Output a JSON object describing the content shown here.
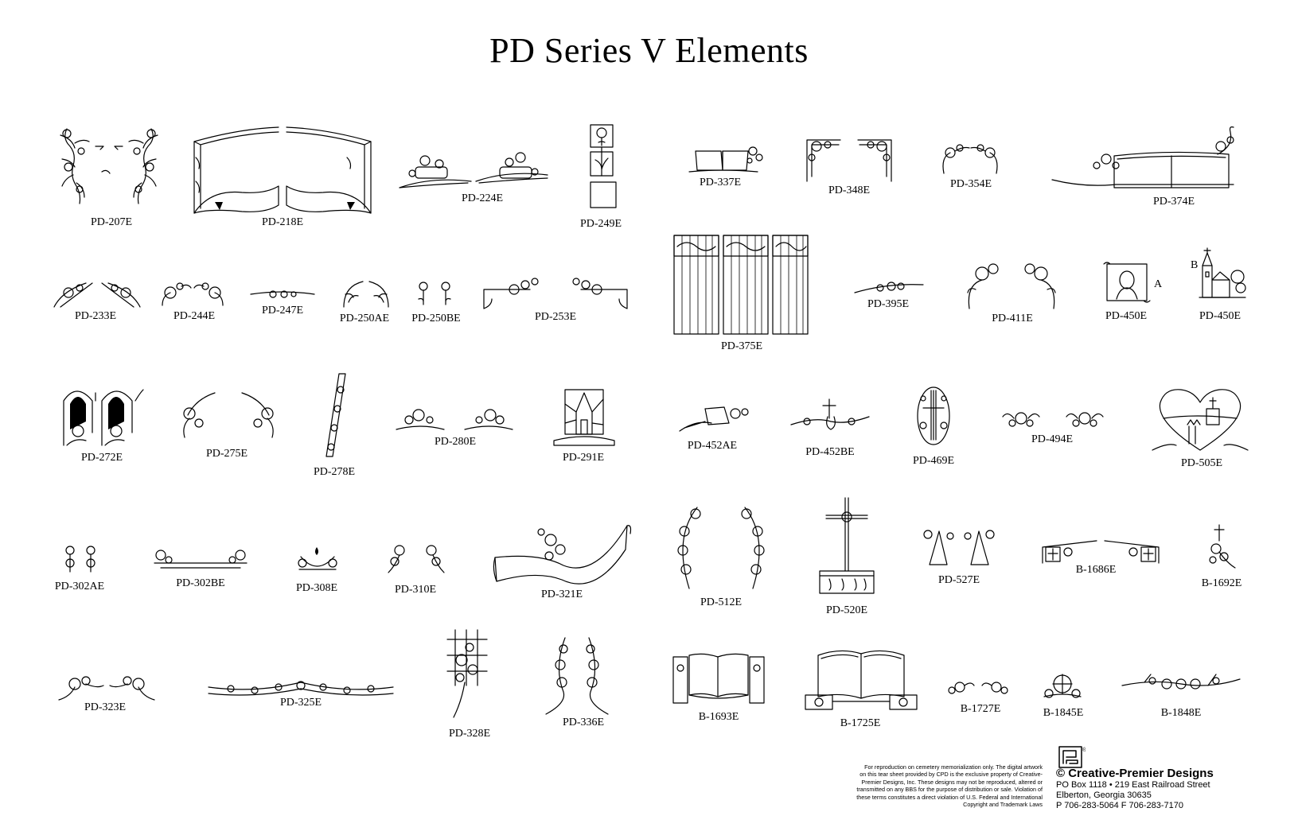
{
  "title": "PD Series V Elements",
  "elements": [
    {
      "id": "PD-207E"
    },
    {
      "id": "PD-218E"
    },
    {
      "id": "PD-224E"
    },
    {
      "id": "PD-249E"
    },
    {
      "id": "PD-337E"
    },
    {
      "id": "PD-348E"
    },
    {
      "id": "PD-354E"
    },
    {
      "id": "PD-374E"
    },
    {
      "id": "PD-233E"
    },
    {
      "id": "PD-244E"
    },
    {
      "id": "PD-247E"
    },
    {
      "id": "PD-250AE"
    },
    {
      "id": "PD-250BE"
    },
    {
      "id": "PD-253E"
    },
    {
      "id": "PD-375E"
    },
    {
      "id": "PD-395E"
    },
    {
      "id": "PD-411E"
    },
    {
      "id": "PD-450E"
    },
    {
      "id": "PD-450E"
    },
    {
      "id": "PD-272E"
    },
    {
      "id": "PD-275E"
    },
    {
      "id": "PD-278E"
    },
    {
      "id": "PD-280E"
    },
    {
      "id": "PD-291E"
    },
    {
      "id": "PD-452AE"
    },
    {
      "id": "PD-452BE"
    },
    {
      "id": "PD-469E"
    },
    {
      "id": "PD-494E"
    },
    {
      "id": "PD-505E"
    },
    {
      "id": "PD-302AE"
    },
    {
      "id": "PD-302BE"
    },
    {
      "id": "PD-308E"
    },
    {
      "id": "PD-310E"
    },
    {
      "id": "PD-321E"
    },
    {
      "id": "PD-512E"
    },
    {
      "id": "PD-520E"
    },
    {
      "id": "PD-527E"
    },
    {
      "id": "B-1686E"
    },
    {
      "id": "B-1692E"
    },
    {
      "id": "PD-323E"
    },
    {
      "id": "PD-325E"
    },
    {
      "id": "PD-328E"
    },
    {
      "id": "PD-336E"
    },
    {
      "id": "B-1693E"
    },
    {
      "id": "B-1725E"
    },
    {
      "id": "B-1727E"
    },
    {
      "id": "B-1845E"
    },
    {
      "id": "B-1848E"
    }
  ],
  "variant_tags": {
    "a": "A",
    "b": "B"
  },
  "legal": {
    "lines": [
      "For reproduction on cemetery memorialization only. The digital artwork",
      "on this tear sheet provided by CPD is the exclusive property of Creative-",
      "Premier Designs, Inc. These designs may not be reproduced, altered or",
      "transmitted on any BBS for the purpose of distribution or sale. Violation of",
      "these terms constitutes a direct violation of U.S. Federal and International",
      "Copyright and Trademark Laws"
    ]
  },
  "company": {
    "name": "© Creative-Premier Designs",
    "address": "PO Box 1118 • 219 East Railroad Street",
    "city": "Elberton, Georgia 30635",
    "phone": "P 706-283-5064  F 706-283-7170",
    "trademark": "®"
  }
}
